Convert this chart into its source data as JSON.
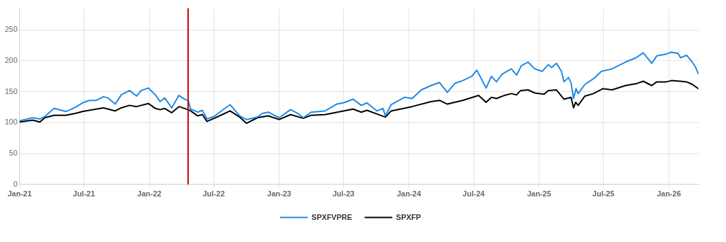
{
  "chart_data": {
    "type": "line",
    "xlim": [
      "2021-01-01",
      "2026-03-25"
    ],
    "ylim": [
      0,
      285
    ],
    "xticks": [
      {
        "value": "2021-01",
        "label": "Jan-21"
      },
      {
        "value": "2021-07",
        "label": "Jul-21"
      },
      {
        "value": "2022-01",
        "label": "Jan-22"
      },
      {
        "value": "2022-07",
        "label": "Jul-22"
      },
      {
        "value": "2023-01",
        "label": "Jan-23"
      },
      {
        "value": "2023-07",
        "label": "Jul-23"
      },
      {
        "value": "2024-01",
        "label": "Jan-24"
      },
      {
        "value": "2024-07",
        "label": "Jul-24"
      },
      {
        "value": "2025-01",
        "label": "Jan-25"
      },
      {
        "value": "2025-07",
        "label": "Jul-25"
      },
      {
        "value": "2026-01",
        "label": "Jan-26"
      }
    ],
    "yticks": [
      0,
      50,
      100,
      150,
      200,
      250
    ],
    "grid": true,
    "legend": "bottom",
    "marker": "none",
    "line_style": "solid",
    "ref_lines": [
      {
        "axis": "x",
        "value": "2022-04-20",
        "color": "#c00000"
      }
    ],
    "series": [
      {
        "name": "SPXFVPRE",
        "color": "#1e88e5",
        "x": [
          "2021-01-01",
          "2021-02-07",
          "2021-02-27",
          "2021-03-13",
          "2021-04-08",
          "2021-05-11",
          "2021-06-07",
          "2021-06-27",
          "2021-07-16",
          "2021-08-05",
          "2021-08-25",
          "2021-09-07",
          "2021-09-27",
          "2021-10-14",
          "2021-11-06",
          "2021-11-26",
          "2021-12-09",
          "2021-12-29",
          "2022-01-18",
          "2022-01-31",
          "2022-02-13",
          "2022-03-05",
          "2022-03-25",
          "2022-04-10",
          "2022-04-20",
          "2022-04-27",
          "2022-05-17",
          "2022-05-30",
          "2022-06-12",
          "2022-07-02",
          "2022-07-25",
          "2022-08-16",
          "2022-09-12",
          "2022-10-01",
          "2022-11-01",
          "2022-11-15",
          "2022-12-01",
          "2023-01-01",
          "2023-02-02",
          "2023-02-22",
          "2023-03-10",
          "2023-04-01",
          "2023-05-10",
          "2023-06-12",
          "2023-07-01",
          "2023-07-28",
          "2023-08-20",
          "2023-09-05",
          "2023-10-03",
          "2023-10-20",
          "2023-10-27",
          "2023-11-12",
          "2023-12-20",
          "2024-01-10",
          "2024-02-05",
          "2024-03-03",
          "2024-03-27",
          "2024-04-18",
          "2024-05-10",
          "2024-05-31",
          "2024-06-26",
          "2024-07-10",
          "2024-08-05",
          "2024-08-20",
          "2024-09-03",
          "2024-09-20",
          "2024-10-15",
          "2024-10-30",
          "2024-11-12",
          "2024-12-01",
          "2024-12-20",
          "2025-01-10",
          "2025-01-27",
          "2025-02-05",
          "2025-02-19",
          "2025-03-05",
          "2025-03-12",
          "2025-03-25",
          "2025-04-01",
          "2025-04-08",
          "2025-04-15",
          "2025-04-21",
          "2025-05-10",
          "2025-06-03",
          "2025-06-25",
          "2025-07-25",
          "2025-09-01",
          "2025-10-01",
          "2025-10-21",
          "2025-11-14",
          "2025-11-28",
          "2025-12-25",
          "2026-01-08",
          "2026-01-27",
          "2026-02-03",
          "2026-02-20",
          "2026-03-08",
          "2026-03-17",
          "2026-03-25"
        ],
        "values": [
          103,
          108,
          106,
          110,
          123,
          118,
          125,
          132,
          136,
          136,
          142,
          140,
          130,
          145,
          152,
          143,
          152,
          156,
          145,
          134,
          140,
          124,
          144,
          138,
          136,
          122,
          117,
          120,
          106,
          110,
          120,
          129,
          111,
          105,
          109,
          115,
          117,
          108,
          121,
          115,
          108,
          117,
          119,
          130,
          132,
          138,
          128,
          132,
          119,
          123,
          111,
          129,
          141,
          139,
          153,
          160,
          165,
          149,
          164,
          168,
          175,
          185,
          156,
          175,
          166,
          179,
          187,
          177,
          192,
          198,
          187,
          183,
          194,
          189,
          196,
          183,
          166,
          173,
          164,
          139,
          155,
          147,
          162,
          171,
          183,
          187,
          198,
          205,
          213,
          196,
          208,
          211,
          214,
          212,
          205,
          209,
          198,
          190,
          179
        ]
      },
      {
        "name": "SPXFP",
        "color": "#000000",
        "x": [
          "2021-01-01",
          "2021-02-07",
          "2021-02-27",
          "2021-03-13",
          "2021-04-08",
          "2021-05-11",
          "2021-06-07",
          "2021-06-27",
          "2021-07-16",
          "2021-08-25",
          "2021-09-27",
          "2021-10-14",
          "2021-11-06",
          "2021-11-26",
          "2021-12-29",
          "2022-01-18",
          "2022-01-31",
          "2022-02-13",
          "2022-03-05",
          "2022-03-25",
          "2022-04-20",
          "2022-04-27",
          "2022-05-17",
          "2022-05-30",
          "2022-06-12",
          "2022-07-02",
          "2022-07-25",
          "2022-08-16",
          "2022-09-12",
          "2022-10-01",
          "2022-11-01",
          "2022-12-01",
          "2023-01-01",
          "2023-02-02",
          "2023-03-10",
          "2023-04-01",
          "2023-05-10",
          "2023-07-01",
          "2023-07-28",
          "2023-08-20",
          "2023-09-05",
          "2023-10-03",
          "2023-10-27",
          "2023-11-12",
          "2024-01-10",
          "2024-03-03",
          "2024-03-27",
          "2024-04-18",
          "2024-05-31",
          "2024-07-15",
          "2024-08-05",
          "2024-08-20",
          "2024-09-03",
          "2024-09-25",
          "2024-10-15",
          "2024-10-30",
          "2024-11-10",
          "2024-12-01",
          "2024-12-20",
          "2025-01-15",
          "2025-01-27",
          "2025-02-19",
          "2025-03-12",
          "2025-04-01",
          "2025-04-08",
          "2025-04-14",
          "2025-04-21",
          "2025-05-10",
          "2025-06-03",
          "2025-06-30",
          "2025-07-25",
          "2025-09-01",
          "2025-10-01",
          "2025-10-21",
          "2025-11-14",
          "2025-11-28",
          "2025-12-25",
          "2026-01-08",
          "2026-02-03",
          "2026-02-20",
          "2026-03-08",
          "2026-03-25"
        ],
        "values": [
          101,
          104,
          101,
          108,
          112,
          112,
          115,
          118,
          120,
          124,
          119,
          124,
          128,
          126,
          131,
          123,
          121,
          123,
          116,
          126,
          121,
          119,
          111,
          113,
          102,
          107,
          113,
          119,
          109,
          99,
          108,
          111,
          105,
          113,
          107,
          112,
          113,
          119,
          122,
          117,
          120,
          114,
          109,
          119,
          126,
          134,
          136,
          130,
          136,
          144,
          133,
          141,
          139,
          144,
          147,
          145,
          152,
          153,
          148,
          146,
          152,
          153,
          138,
          141,
          124,
          133,
          128,
          143,
          147,
          155,
          153,
          160,
          163,
          167,
          160,
          166,
          166,
          168,
          167,
          166,
          162,
          155
        ]
      }
    ]
  }
}
